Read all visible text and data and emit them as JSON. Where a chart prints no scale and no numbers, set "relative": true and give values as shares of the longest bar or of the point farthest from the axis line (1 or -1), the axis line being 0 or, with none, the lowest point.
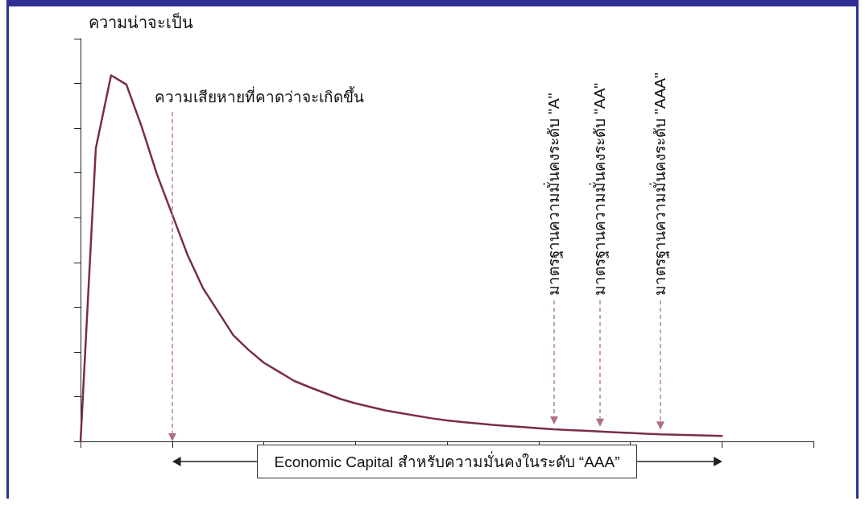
{
  "chart_data": {
    "type": "line",
    "relative": true,
    "ylabel": "ความน่าจะเป็น",
    "categories": [
      null,
      null,
      null,
      null,
      null,
      null,
      null,
      null,
      null,
      null,
      null,
      null,
      null,
      null,
      null,
      null,
      null,
      null,
      null,
      null,
      null,
      null,
      null,
      null,
      null,
      null,
      null,
      null,
      null,
      null,
      null,
      null,
      null,
      null,
      null,
      null,
      null,
      null,
      null,
      null,
      null,
      null,
      null,
      null,
      null,
      null,
      null,
      null,
      null
    ],
    "series": [
      {
        "color": "#7b2d45",
        "values": [
          0,
          0.8,
          1,
          0.975,
          0.86,
          0.73,
          0.62,
          0.51,
          0.42,
          0.355,
          0.29,
          0.25,
          0.215,
          0.19,
          0.165,
          0.148,
          0.132,
          0.116,
          0.104,
          0.094,
          0.084,
          0.077,
          0.07,
          0.063,
          0.057,
          0.053,
          0.049,
          0.045,
          0.042,
          0.039,
          0.036,
          0.033,
          0.031,
          0.029,
          0.027,
          0.025,
          0.023,
          0.021,
          0.019,
          0.018,
          0.017,
          0.016,
          0.015,
          null,
          null,
          null,
          null,
          null,
          null
        ]
      }
    ],
    "annotations": [
      "ความเสียหายที่คาดว่าจะเกิดขึ้น",
      "มาตรฐานความมั่นคงระดับ \"A\"",
      "มาตรฐานความมั่นคงระดับ \"AA\"",
      "มาตรฐานความมั่นคงระดับ \"AAA\"",
      "Economic Capital สำหรับความมั่นคงในระดับ “AAA”"
    ],
    "grid": false,
    "marker": "none",
    "line_style": "solid"
  }
}
